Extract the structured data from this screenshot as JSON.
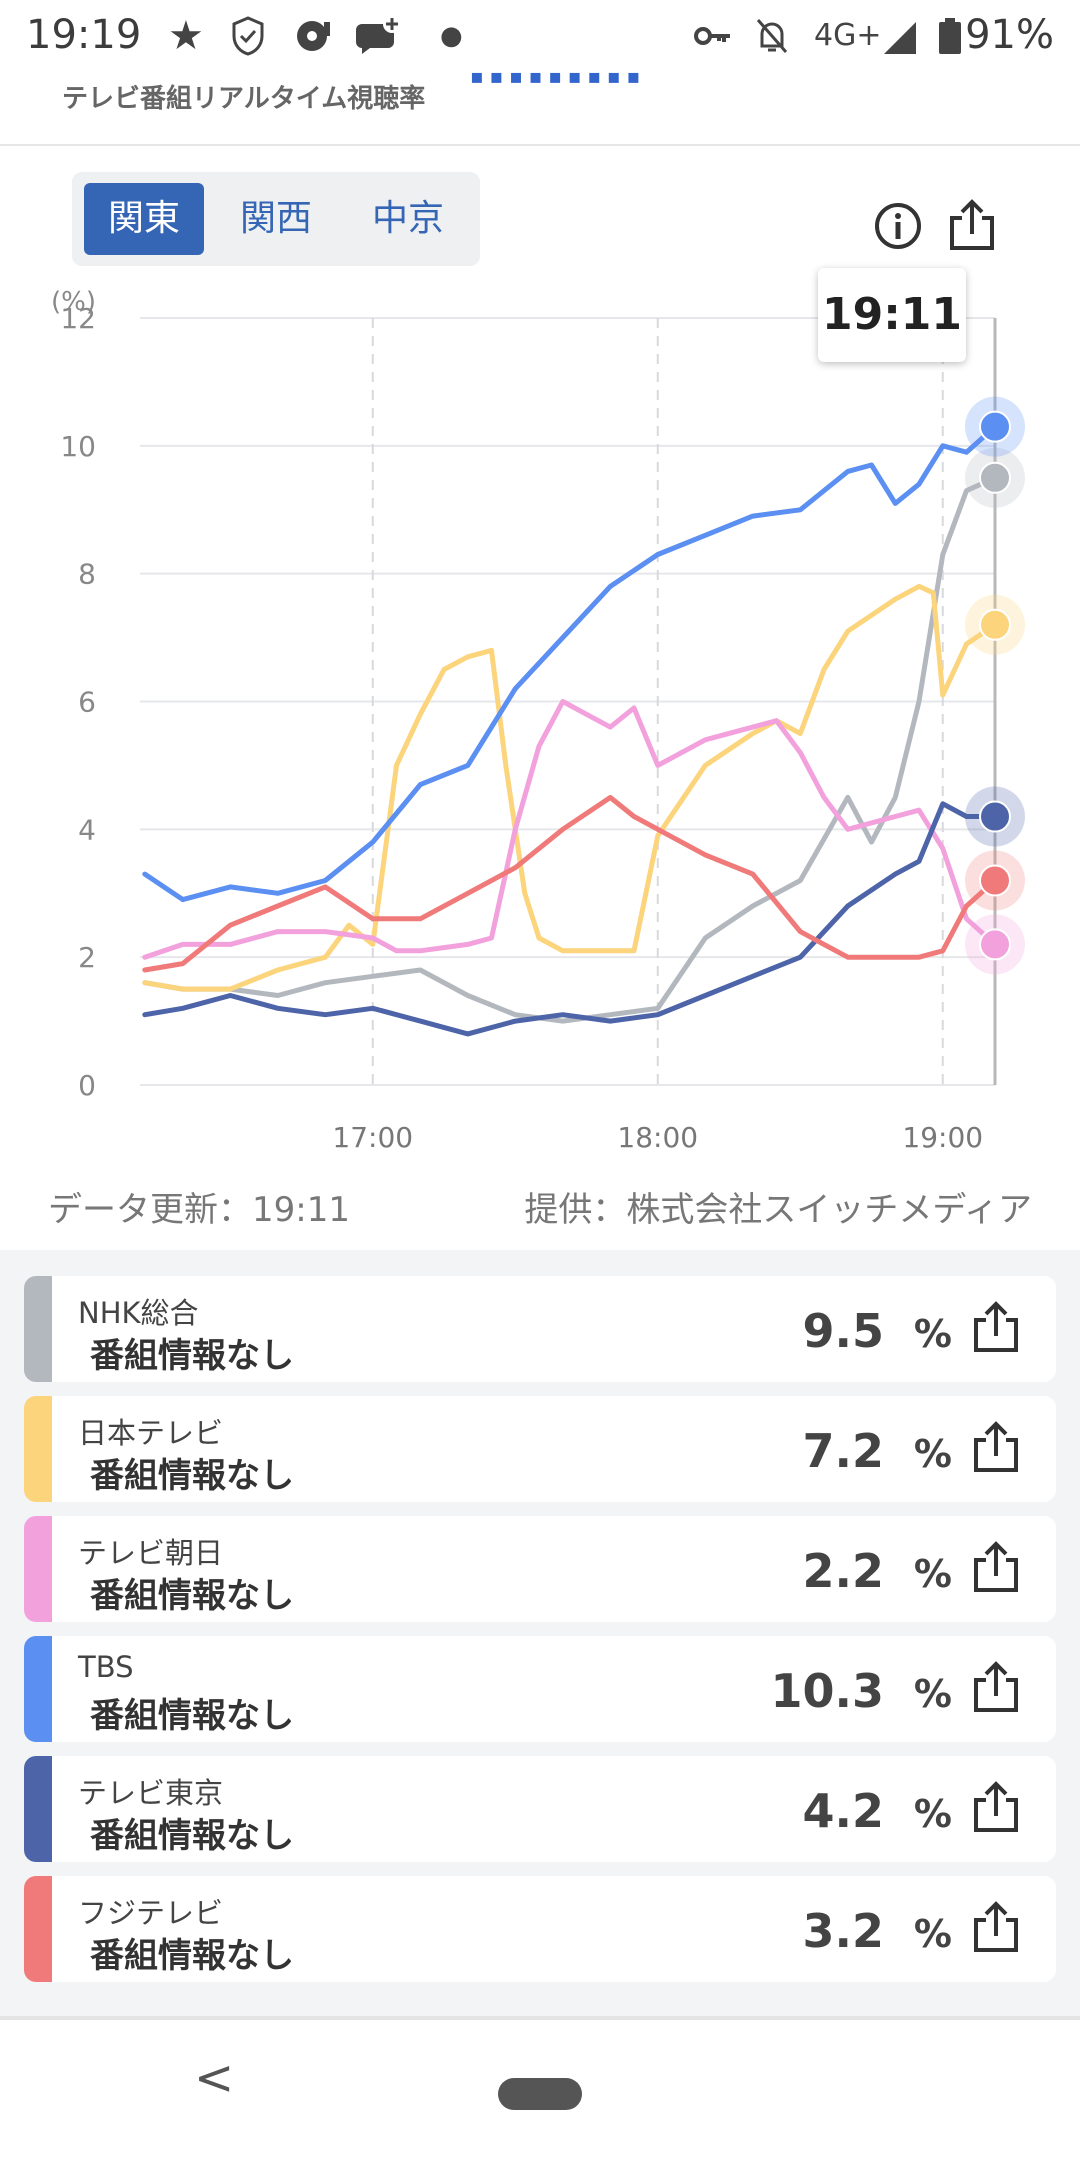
{
  "status_bar": {
    "time": "19:19",
    "network": "4G+",
    "battery": "91%",
    "icons": [
      "star-icon",
      "shield-icon",
      "media-icon",
      "chat-plus-icon",
      "dot-icon",
      "key-icon",
      "bell-off-icon",
      "signal-icon",
      "battery-icon"
    ]
  },
  "header": {
    "title": "テレビ番組リアルタイム視聴率"
  },
  "tabs": [
    {
      "label": "関東",
      "active": true
    },
    {
      "label": "関西",
      "active": false
    },
    {
      "label": "中京",
      "active": false
    }
  ],
  "toolbar": {
    "icons": [
      "info-icon",
      "share-icon"
    ]
  },
  "tooltip": {
    "time": "19:11"
  },
  "chart_data": {
    "type": "line",
    "ylabel": "(%)",
    "ylim": [
      0,
      12
    ],
    "yticks": [
      "0",
      "2",
      "4",
      "6",
      "8",
      "10",
      "12"
    ],
    "xticks": [
      "17:00",
      "18:00",
      "19:00"
    ],
    "xlim": [
      "16:11",
      "19:11"
    ],
    "grid": true,
    "series": [
      {
        "name": "NHK総合",
        "color": "#b3b8bf",
        "x": [
          "16:12",
          "16:20",
          "16:30",
          "16:40",
          "16:50",
          "17:00",
          "17:10",
          "17:20",
          "17:30",
          "17:40",
          "17:50",
          "18:00",
          "18:10",
          "18:20",
          "18:30",
          "18:40",
          "18:45",
          "18:50",
          "18:55",
          "19:00",
          "19:05",
          "19:11"
        ],
        "values": [
          1.6,
          1.5,
          1.5,
          1.4,
          1.6,
          1.7,
          1.8,
          1.4,
          1.1,
          1.0,
          1.1,
          1.2,
          2.3,
          2.8,
          3.2,
          4.5,
          3.8,
          4.5,
          6.0,
          8.3,
          9.3,
          9.5
        ]
      },
      {
        "name": "日本テレビ",
        "color": "#fbd47c",
        "x": [
          "16:12",
          "16:20",
          "16:30",
          "16:40",
          "16:50",
          "16:55",
          "17:00",
          "17:05",
          "17:10",
          "17:15",
          "17:20",
          "17:25",
          "17:28",
          "17:32",
          "17:35",
          "17:40",
          "17:50",
          "17:55",
          "18:00",
          "18:10",
          "18:20",
          "18:25",
          "18:30",
          "18:35",
          "18:40",
          "18:50",
          "18:55",
          "18:58",
          "19:00",
          "19:05",
          "19:11"
        ],
        "values": [
          1.6,
          1.5,
          1.5,
          1.8,
          2.0,
          2.5,
          2.2,
          5.0,
          5.8,
          6.5,
          6.7,
          6.8,
          5.0,
          3.0,
          2.3,
          2.1,
          2.1,
          2.1,
          3.9,
          5.0,
          5.5,
          5.7,
          5.5,
          6.5,
          7.1,
          7.6,
          7.8,
          7.7,
          6.1,
          6.9,
          7.2
        ]
      },
      {
        "name": "テレビ朝日",
        "color": "#f2a1dd",
        "x": [
          "16:12",
          "16:20",
          "16:30",
          "16:40",
          "16:50",
          "17:00",
          "17:05",
          "17:10",
          "17:20",
          "17:25",
          "17:30",
          "17:35",
          "17:40",
          "17:45",
          "17:50",
          "17:55",
          "18:00",
          "18:10",
          "18:20",
          "18:25",
          "18:30",
          "18:35",
          "18:40",
          "18:50",
          "18:55",
          "19:00",
          "19:05",
          "19:11"
        ],
        "values": [
          2.0,
          2.2,
          2.2,
          2.4,
          2.4,
          2.3,
          2.1,
          2.1,
          2.2,
          2.3,
          4.0,
          5.3,
          6.0,
          5.8,
          5.6,
          5.9,
          5.0,
          5.4,
          5.6,
          5.7,
          5.2,
          4.5,
          4.0,
          4.2,
          4.3,
          3.7,
          2.6,
          2.2
        ]
      },
      {
        "name": "TBS",
        "color": "#5b8ff2",
        "x": [
          "16:12",
          "16:20",
          "16:30",
          "16:40",
          "16:50",
          "17:00",
          "17:10",
          "17:20",
          "17:30",
          "17:40",
          "17:50",
          "18:00",
          "18:10",
          "18:20",
          "18:30",
          "18:40",
          "18:45",
          "18:50",
          "18:55",
          "19:00",
          "19:05",
          "19:11"
        ],
        "values": [
          3.3,
          2.9,
          3.1,
          3.0,
          3.2,
          3.8,
          4.7,
          5.0,
          6.2,
          7.0,
          7.8,
          8.3,
          8.6,
          8.9,
          9.0,
          9.6,
          9.7,
          9.1,
          9.4,
          10.0,
          9.9,
          10.3
        ]
      },
      {
        "name": "テレビ東京",
        "color": "#4d64a8",
        "x": [
          "16:12",
          "16:20",
          "16:30",
          "16:40",
          "16:50",
          "17:00",
          "17:10",
          "17:20",
          "17:30",
          "17:40",
          "17:50",
          "18:00",
          "18:10",
          "18:20",
          "18:30",
          "18:40",
          "18:50",
          "18:55",
          "19:00",
          "19:05",
          "19:11"
        ],
        "values": [
          1.1,
          1.2,
          1.4,
          1.2,
          1.1,
          1.2,
          1.0,
          0.8,
          1.0,
          1.1,
          1.0,
          1.1,
          1.4,
          1.7,
          2.0,
          2.8,
          3.3,
          3.5,
          4.4,
          4.2,
          4.2
        ]
      },
      {
        "name": "フジテレビ",
        "color": "#f07a7a",
        "x": [
          "16:12",
          "16:20",
          "16:30",
          "16:40",
          "16:50",
          "17:00",
          "17:10",
          "17:20",
          "17:30",
          "17:40",
          "17:50",
          "17:55",
          "18:00",
          "18:10",
          "18:20",
          "18:30",
          "18:35",
          "18:40",
          "18:50",
          "18:55",
          "19:00",
          "19:05",
          "19:11"
        ],
        "values": [
          1.8,
          1.9,
          2.5,
          2.8,
          3.1,
          2.6,
          2.6,
          3.0,
          3.4,
          4.0,
          4.5,
          4.2,
          4.0,
          3.6,
          3.3,
          2.4,
          2.2,
          2.0,
          2.0,
          2.0,
          2.1,
          2.8,
          3.2
        ]
      }
    ]
  },
  "footer": {
    "updated": "データ更新：19:11",
    "provider": "提供：株式会社スイッチメディア"
  },
  "channels": [
    {
      "name": "NHK総合",
      "program": "番組情報なし",
      "value": "9.5",
      "unit": "%",
      "color": "#b3b8bf"
    },
    {
      "name": "日本テレビ",
      "program": "番組情報なし",
      "value": "7.2",
      "unit": "%",
      "color": "#fbd47c"
    },
    {
      "name": "テレビ朝日",
      "program": "番組情報なし",
      "value": "2.2",
      "unit": "%",
      "color": "#f2a1dd"
    },
    {
      "name": "TBS",
      "program": "番組情報なし",
      "value": "10.3",
      "unit": "%",
      "color": "#5b8ff2"
    },
    {
      "name": "テレビ東京",
      "program": "番組情報なし",
      "value": "4.2",
      "unit": "%",
      "color": "#4d64a8"
    },
    {
      "name": "フジテレビ",
      "program": "番組情報なし",
      "value": "3.2",
      "unit": "%",
      "color": "#f07a7a"
    }
  ],
  "nav": {
    "icons": [
      "back-icon",
      "home-pill-icon"
    ]
  }
}
